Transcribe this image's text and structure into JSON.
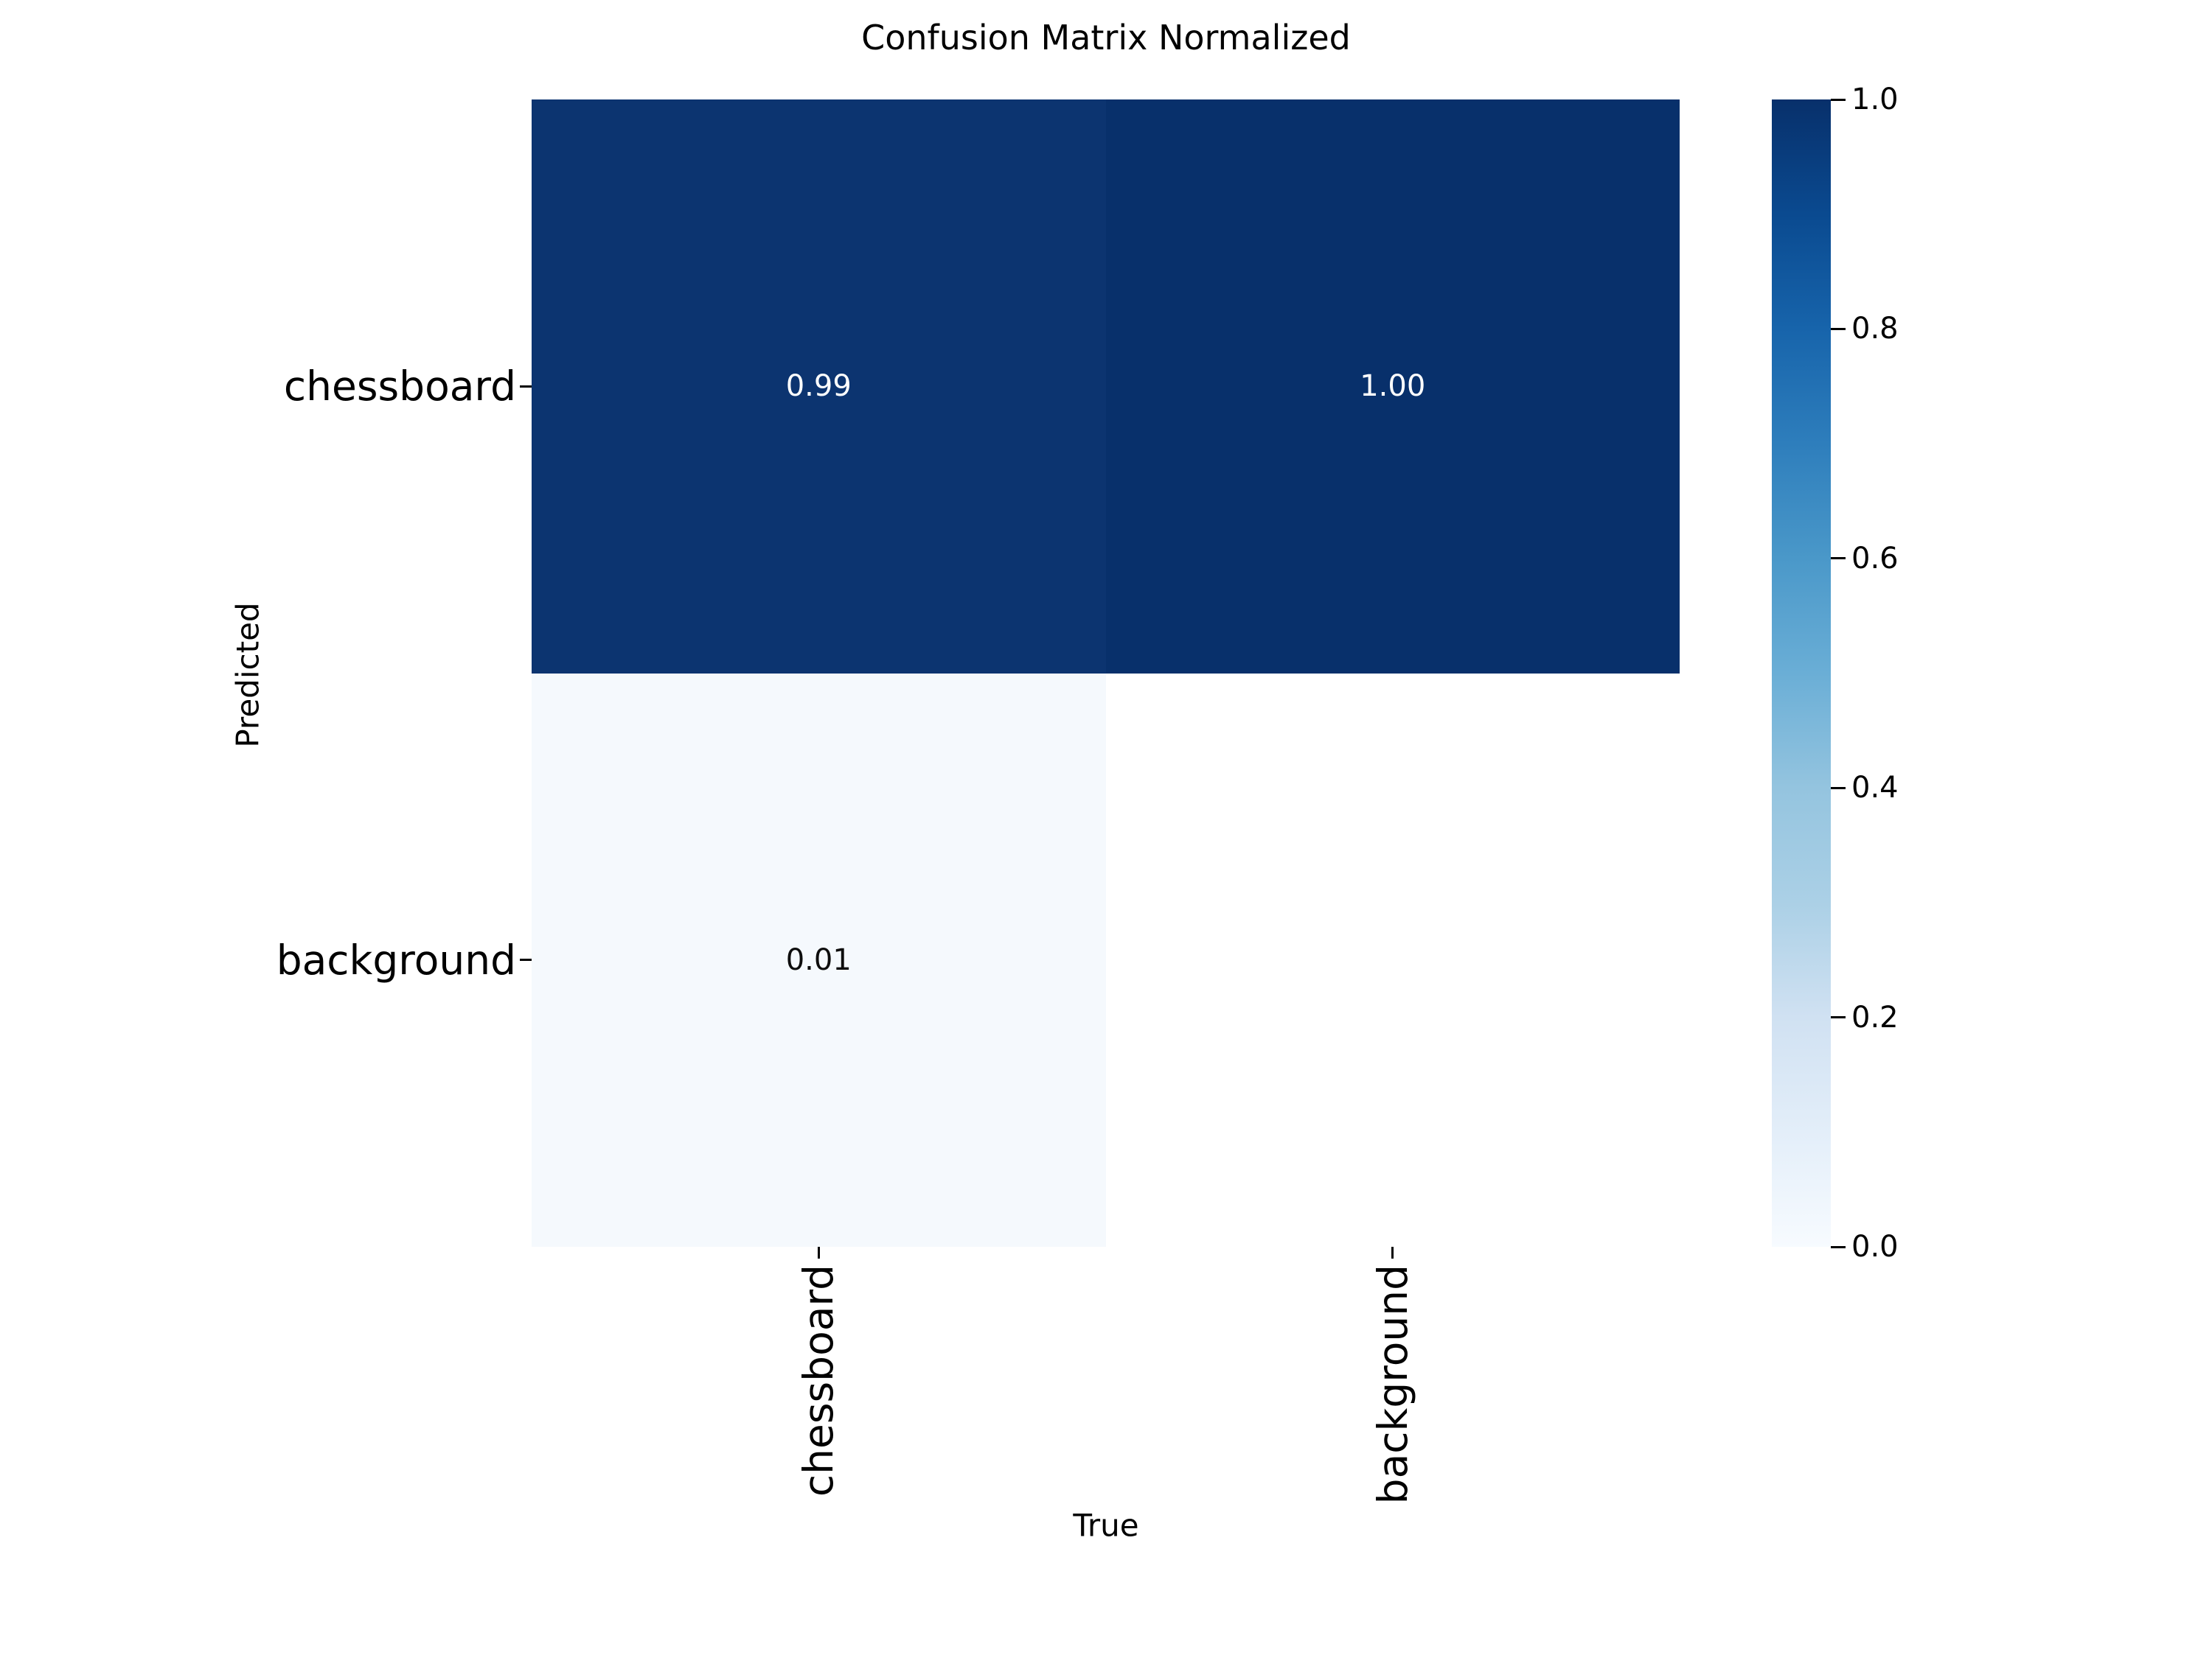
{
  "chart_data": {
    "type": "heatmap",
    "title": "Confusion Matrix Normalized",
    "xlabel": "True",
    "ylabel": "Predicted",
    "x_categories": [
      "chessboard",
      "background"
    ],
    "y_categories": [
      "chessboard",
      "background"
    ],
    "matrix": [
      [
        0.99,
        1.0
      ],
      [
        0.01,
        null
      ]
    ],
    "cell_labels": [
      [
        "0.99",
        "1.00"
      ],
      [
        "0.01",
        ""
      ]
    ],
    "colormap": "Blues",
    "colorbar_ticks": [
      "1.0",
      "0.8",
      "0.6",
      "0.4",
      "0.2",
      "0.0"
    ],
    "colorbar_range": [
      0.0,
      1.0
    ],
    "legend_position": "right",
    "grid": false
  },
  "style": {
    "background": "#ffffff",
    "cell_colors": [
      [
        "#0c3470",
        "#08306b"
      ],
      [
        "#f5f9fd",
        "#ffffff"
      ]
    ],
    "cell_text_colors": [
      [
        "#ffffff",
        "#ffffff"
      ],
      [
        "#0d0d0d",
        "#0d0d0d"
      ]
    ],
    "colormap_stops": [
      "#08306b",
      "#0a4a90",
      "#1764ab",
      "#2e7ebc",
      "#4a98c9",
      "#6aaed6",
      "#94c4df",
      "#abd0e6",
      "#d0e1f2",
      "#e3eef9",
      "#f7fbff"
    ],
    "tick_color": "#000000",
    "text_color": "#000000"
  }
}
